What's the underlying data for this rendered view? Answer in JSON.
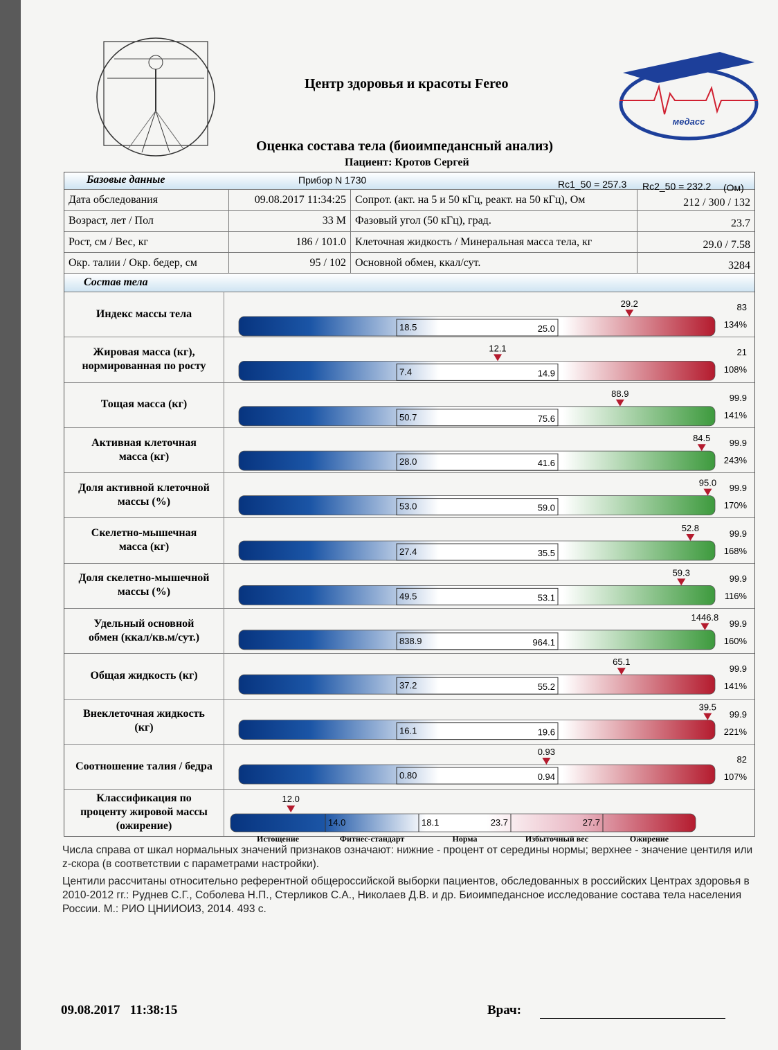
{
  "header": {
    "center": "Центр здоровья и красоты Fereo",
    "title": "Оценка состава тела (биоимпедансный анализ)",
    "patient": "Пациент: Кротов Сергей"
  },
  "base": {
    "label": "Базовые данные",
    "device": "Прибор N 1730",
    "rc1": "Rc1_50 = 257.3",
    "rc2": "Rc2_50 = 232.2",
    "unit": "(Ом)",
    "rows": [
      [
        "Дата обследования",
        "09.08.2017 11:34:25",
        "Сопрот. (акт. на 5 и 50 кГц, реакт. на 50 кГц), Ом",
        "212 / 300 / 132"
      ],
      [
        "Возраст, лет / Пол",
        "33 М",
        "Фазовый угол (50 кГц), град.",
        "23.7"
      ],
      [
        "Рост, см / Вес, кг",
        "186 / 101.0",
        "Клеточная жидкость / Минеральная масса тела, кг",
        "29.0 / 7.58"
      ],
      [
        "Окр. талии / Окр. бедер, см",
        "95 / 102",
        "Основной обмен, ккал/сут.",
        "3284"
      ]
    ]
  },
  "composition": {
    "label": "Состав тела",
    "metrics": [
      {
        "label": [
          "Индекс массы тела"
        ],
        "value": "29.2",
        "low": "18.5",
        "high": "25.0",
        "centile": "83",
        "percent": "134%",
        "color": "#b41b2e"
      },
      {
        "label": [
          "Жировая масса (кг),",
          "нормированная по росту"
        ],
        "value": "12.1",
        "low": "7.4",
        "high": "14.9",
        "centile": "21",
        "percent": "108%",
        "color": "#b41b2e"
      },
      {
        "label": [
          "Тощая масса (кг)"
        ],
        "value": "88.9",
        "low": "50.7",
        "high": "75.6",
        "centile": "99.9",
        "percent": "141%",
        "color": "#3d9a3d"
      },
      {
        "label": [
          "Активная клеточная",
          "масса (кг)"
        ],
        "value": "84.5",
        "low": "28.0",
        "high": "41.6",
        "centile": "99.9",
        "percent": "243%",
        "color": "#3d9a3d"
      },
      {
        "label": [
          "Доля активной клеточной",
          "массы (%)"
        ],
        "value": "95.0",
        "low": "53.0",
        "high": "59.0",
        "centile": "99.9",
        "percent": "170%",
        "color": "#3d9a3d"
      },
      {
        "label": [
          "Скелетно-мышечная",
          "масса (кг)"
        ],
        "value": "52.8",
        "low": "27.4",
        "high": "35.5",
        "centile": "99.9",
        "percent": "168%",
        "color": "#3d9a3d"
      },
      {
        "label": [
          "Доля скелетно-мышечной",
          "массы (%)"
        ],
        "value": "59.3",
        "low": "49.5",
        "high": "53.1",
        "centile": "99.9",
        "percent": "116%",
        "color": "#3d9a3d"
      },
      {
        "label": [
          "Удельный основной",
          "обмен (ккал/кв.м/сут.)"
        ],
        "value": "1446.8",
        "low": "838.9",
        "high": "964.1",
        "centile": "99.9",
        "percent": "160%",
        "color": "#3d9a3d"
      },
      {
        "label": [
          "Общая жидкость (кг)"
        ],
        "value": "65.1",
        "low": "37.2",
        "high": "55.2",
        "centile": "99.9",
        "percent": "141%",
        "color": "#b41b2e"
      },
      {
        "label": [
          "Внеклеточная жидкость",
          "(кг)"
        ],
        "value": "39.5",
        "low": "16.1",
        "high": "19.6",
        "centile": "99.9",
        "percent": "221%",
        "color": "#b41b2e"
      },
      {
        "label": [
          "Соотношение талия / бедра"
        ],
        "value": "0.93",
        "low": "0.80",
        "high": "0.94",
        "centile": "82",
        "percent": "107%",
        "color": "#b41b2e"
      }
    ],
    "classification": {
      "label": [
        "Классификация по",
        "проценту жировой массы",
        "(ожирение)"
      ],
      "value": "12.0",
      "thresholds": [
        "14.0",
        "18.1",
        "23.7",
        "27.7"
      ],
      "zones": [
        "Истощение",
        "Фитнес-стандарт",
        "Норма",
        "Избыточный вес",
        "Ожирение"
      ]
    }
  },
  "notes": [
    "Числа справа от шкал нормальных значений признаков означают: нижние - процент от середины нормы; верхнее - значение центиля или z-скора (в соответствии с параметрами настройки).",
    "Центили рассчитаны относительно референтной общероссийской выборки пациентов, обследованных в российских Центрах здоровья в 2010-2012 гг.: Руднев С.Г., Соболева Н.П., Стерликов С.А., Николаев Д.В. и др. Биоимпедансное исследование состава тела населения России. М.: РИО ЦНИИОИЗ, 2014. 493 с."
  ],
  "footer": {
    "datetime": "09.08.2017   11:38:15",
    "doctor": "Врач:"
  }
}
